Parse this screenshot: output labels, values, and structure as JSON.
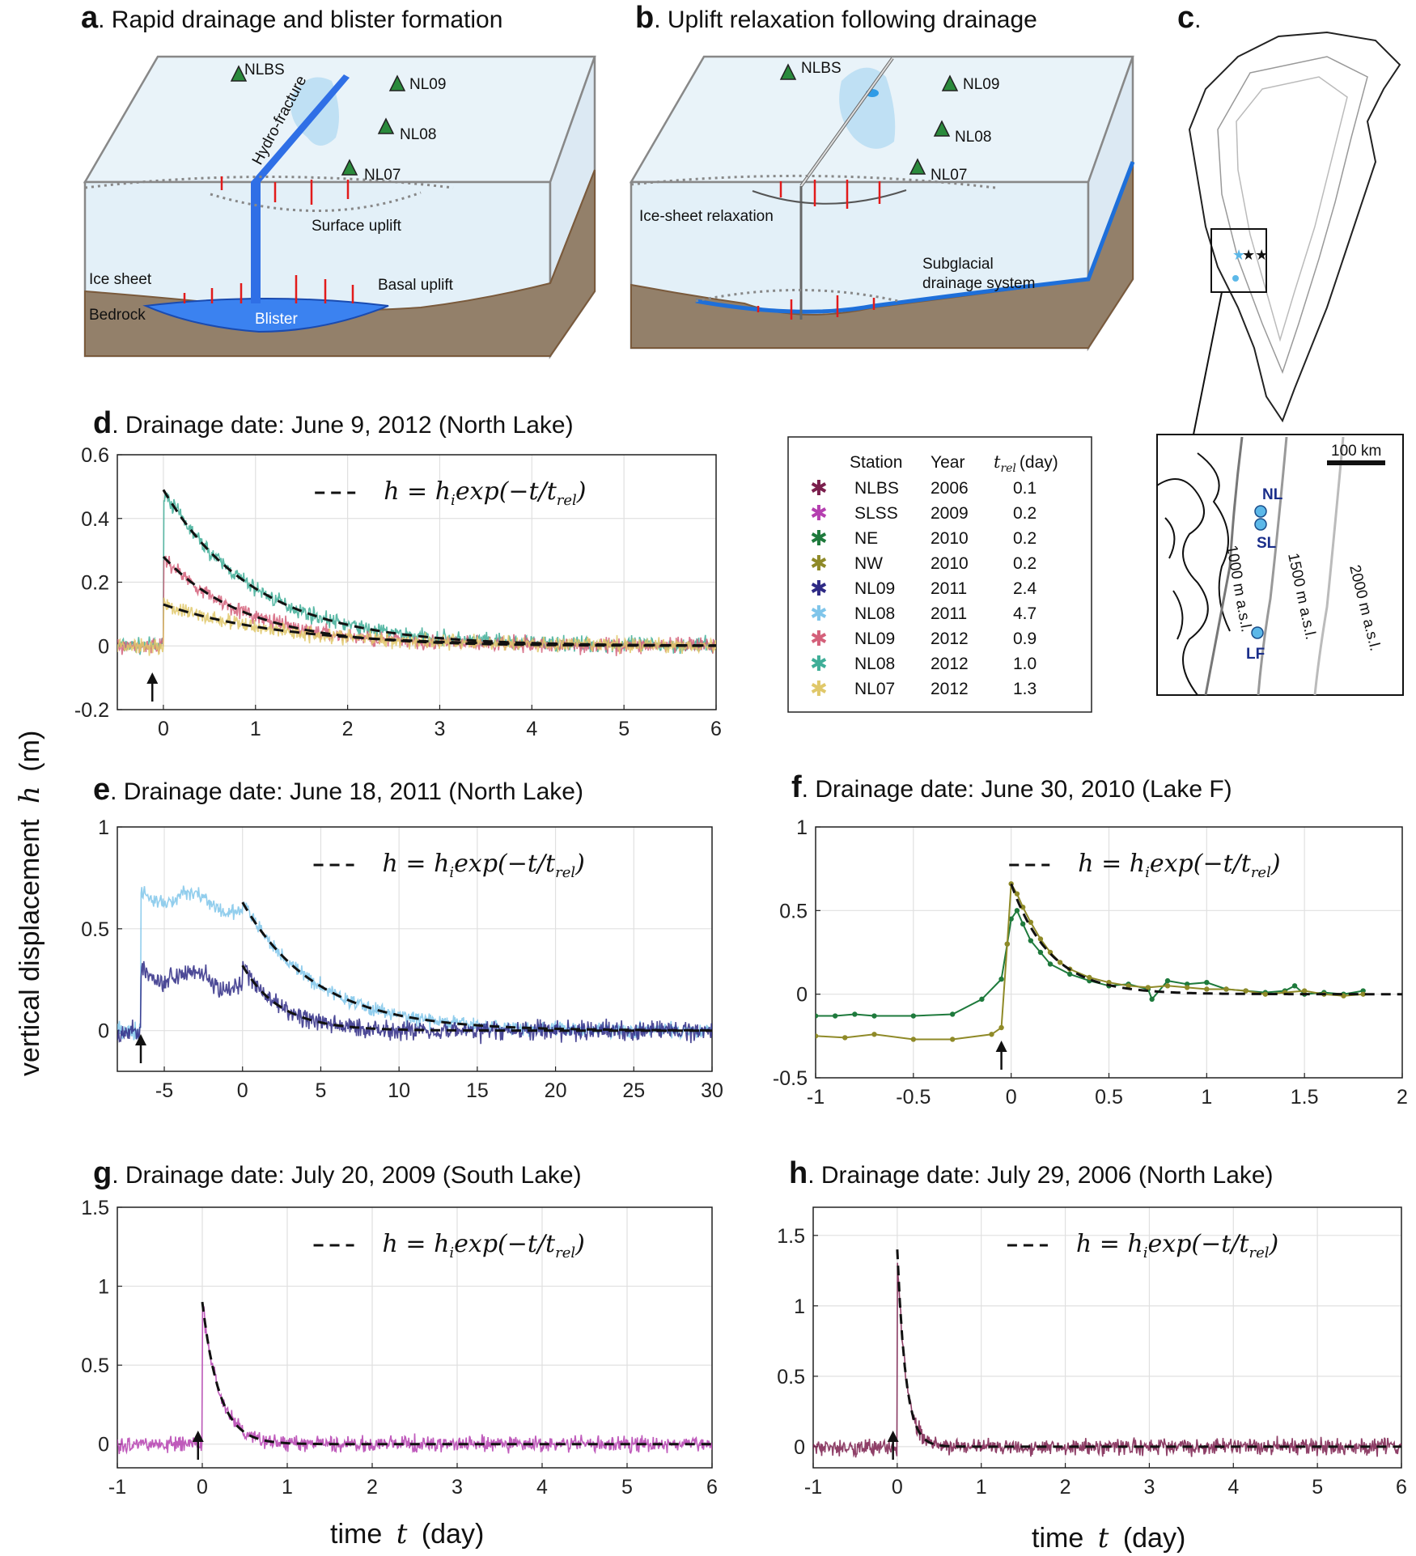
{
  "panels": {
    "a": {
      "label": "a",
      "title": ". Rapid drainage and blister formation",
      "annotations": {
        "nlbs": "NLBS",
        "nl09": "NL09",
        "nl08": "NL08",
        "nl07": "NL07",
        "hydro": "Hydro-fracture",
        "surface": "Surface uplift",
        "ice": "Ice sheet",
        "basal": "Basal uplift",
        "bedrock": "Bedrock",
        "blister": "Blister"
      }
    },
    "b": {
      "label": "b",
      "title": ". Uplift relaxation following drainage",
      "annotations": {
        "nlbs": "NLBS",
        "nl09": "NL09",
        "nl08": "NL08",
        "nl07": "NL07",
        "relax": "Ice-sheet relaxation",
        "subglacial1": "Subglacial",
        "subglacial2": "drainage system"
      }
    },
    "c": {
      "label": "c",
      "title": ".",
      "scale": "100 km",
      "nl": "NL",
      "sl": "SL",
      "lf": "LF",
      "contours": [
        "1000 m a.s.l.",
        "1500 m a.s.l.",
        "2000 m a.s.l."
      ]
    }
  },
  "shared": {
    "ylabel_text": "vertical displacement",
    "ylabel_symbol": "h",
    "ylabel_unit": "(m)",
    "xlabel_text": "time",
    "xlabel_symbol": "t",
    "xlabel_unit": "(day)",
    "fit_label": "h = h",
    "fit_sub": "i",
    "fit_rest": "exp(−t/t",
    "fit_sub2": "rel",
    "fit_close": ")"
  },
  "legend": {
    "headers": [
      "Station",
      "Year",
      "t",
      "rel",
      "(day)"
    ],
    "rows": [
      {
        "station": "NLBS",
        "year": "2006",
        "trel": "0.1",
        "color": "#7b1f4d"
      },
      {
        "station": "SLSS",
        "year": "2009",
        "trel": "0.2",
        "color": "#b53fb0"
      },
      {
        "station": "NE",
        "year": "2010",
        "trel": "0.2",
        "color": "#1e7a3c"
      },
      {
        "station": "NW",
        "year": "2010",
        "trel": "0.2",
        "color": "#8f8a28"
      },
      {
        "station": "NL09",
        "year": "2011",
        "trel": "2.4",
        "color": "#2e2a85"
      },
      {
        "station": "NL08",
        "year": "2011",
        "trel": "4.7",
        "color": "#7fc5ea"
      },
      {
        "station": "NL09",
        "year": "2012",
        "trel": "0.9",
        "color": "#d4607a"
      },
      {
        "station": "NL08",
        "year": "2012",
        "trel": "1.0",
        "color": "#3fae98"
      },
      {
        "station": "NL07",
        "year": "2012",
        "trel": "1.3",
        "color": "#e0c86a"
      }
    ]
  },
  "chart_data": [
    {
      "id": "d",
      "label": "d",
      "type": "line",
      "title": ". Drainage date: June 9, 2012 (North Lake)",
      "xlim": [
        -0.5,
        6
      ],
      "ylim": [
        -0.2,
        0.6
      ],
      "xticks": [
        0,
        1,
        2,
        3,
        4,
        5,
        6
      ],
      "yticks": [
        -0.2,
        0,
        0.2,
        0.4,
        0.6
      ],
      "xticklabels": [
        "0",
        "1",
        "2",
        "3",
        "4",
        "5",
        "6"
      ],
      "yticklabels": [
        "-0.2",
        "0",
        "0.2",
        "0.4",
        "0.6"
      ],
      "arrow_x": -0.12,
      "series": [
        {
          "name": "NL08 2012",
          "color": "#3fae98",
          "hi": 0.49,
          "trel": 1.0,
          "pre": [
            -0.5,
            0
          ],
          "noise": 0.02
        },
        {
          "name": "NL09 2012",
          "color": "#d4607a",
          "hi": 0.28,
          "trel": 0.9,
          "pre": [
            -0.5,
            0
          ],
          "noise": 0.02
        },
        {
          "name": "NL07 2012",
          "color": "#e0c86a",
          "hi": 0.13,
          "trel": 1.3,
          "pre": [
            -0.5,
            0
          ],
          "noise": 0.02
        }
      ]
    },
    {
      "id": "e",
      "label": "e",
      "type": "line",
      "title": ". Drainage date: June 18, 2011 (North Lake)",
      "xlim": [
        -8,
        30
      ],
      "ylim": [
        -0.2,
        1
      ],
      "xticks": [
        -5,
        0,
        5,
        10,
        15,
        20,
        25,
        30
      ],
      "yticks": [
        0,
        0.5,
        1
      ],
      "xticklabels": [
        "-5",
        "0",
        "5",
        "10",
        "15",
        "20",
        "25",
        "30"
      ],
      "yticklabels": [
        "0",
        "0.5",
        "1"
      ],
      "arrow_x": -6.5,
      "series": [
        {
          "name": "NL08 2011",
          "color": "#7fc5ea",
          "hi": 0.63,
          "trel": 4.7,
          "plateau": 0.68,
          "noise": 0.03
        },
        {
          "name": "NL09 2011",
          "color": "#2e2a85",
          "hi": 0.32,
          "trel": 2.4,
          "plateau": 0.3,
          "noise": 0.04
        }
      ]
    },
    {
      "id": "f",
      "label": "f",
      "type": "line",
      "title": ". Drainage date: June 30, 2010 (Lake F)",
      "xlim": [
        -1,
        2
      ],
      "ylim": [
        -0.5,
        1
      ],
      "xticks": [
        -1,
        -0.5,
        0,
        0.5,
        1,
        1.5,
        2
      ],
      "yticks": [
        -0.5,
        0,
        0.5,
        1
      ],
      "xticklabels": [
        "-1",
        "-0.5",
        "0",
        "0.5",
        "1",
        "1.5",
        "2"
      ],
      "yticklabels": [
        "-0.5",
        "0",
        "0.5",
        "1"
      ],
      "arrow_x": -0.05,
      "series": [
        {
          "name": "NE 2010",
          "color": "#1e7a3c",
          "x": [
            -1,
            -0.9,
            -0.8,
            -0.7,
            -0.5,
            -0.3,
            -0.15,
            -0.05,
            -0.02,
            0,
            0.03,
            0.06,
            0.1,
            0.15,
            0.2,
            0.3,
            0.4,
            0.5,
            0.6,
            0.7,
            0.72,
            0.8,
            0.9,
            1.0,
            1.1,
            1.2,
            1.3,
            1.4,
            1.45,
            1.5,
            1.6,
            1.7,
            1.8
          ],
          "y": [
            -0.13,
            -0.13,
            -0.12,
            -0.13,
            -0.13,
            -0.12,
            -0.03,
            0.09,
            0.3,
            0.45,
            0.5,
            0.42,
            0.32,
            0.25,
            0.18,
            0.12,
            0.08,
            0.05,
            0.06,
            0.03,
            -0.03,
            0.08,
            0.06,
            0.07,
            0.03,
            0.02,
            0.01,
            0.02,
            0.05,
            0.0,
            0.01,
            0.0,
            0.02
          ]
        },
        {
          "name": "NW 2010",
          "color": "#8f8a28",
          "x": [
            -1,
            -0.85,
            -0.7,
            -0.5,
            -0.3,
            -0.1,
            -0.05,
            -0.02,
            0,
            0.03,
            0.06,
            0.1,
            0.15,
            0.2,
            0.25,
            0.3,
            0.4,
            0.5,
            0.6,
            0.7,
            0.8,
            0.9,
            1.0,
            1.1,
            1.2,
            1.3,
            1.4,
            1.5,
            1.6,
            1.7,
            1.8
          ],
          "y": [
            -0.25,
            -0.26,
            -0.24,
            -0.27,
            -0.27,
            -0.24,
            -0.2,
            0.3,
            0.66,
            0.6,
            0.52,
            0.43,
            0.33,
            0.25,
            0.19,
            0.15,
            0.1,
            0.07,
            0.05,
            0.04,
            0.05,
            0.04,
            0.03,
            0.03,
            0.02,
            0.0,
            0.01,
            0.02,
            0.0,
            -0.01,
            0.0
          ]
        }
      ],
      "fits": [
        {
          "hi": 0.66,
          "trel": 0.2
        }
      ]
    },
    {
      "id": "g",
      "label": "g",
      "type": "line",
      "title": ". Drainage date: July 20, 2009 (South Lake)",
      "xlim": [
        -1,
        6
      ],
      "ylim": [
        -0.15,
        1.5
      ],
      "xticks": [
        -1,
        0,
        1,
        2,
        3,
        4,
        5,
        6
      ],
      "yticks": [
        0,
        0.5,
        1,
        1.5
      ],
      "xticklabels": [
        "-1",
        "0",
        "1",
        "2",
        "3",
        "4",
        "5",
        "6"
      ],
      "yticklabels": [
        "0",
        "0.5",
        "1",
        "1.5"
      ],
      "arrow_x": -0.05,
      "series": [
        {
          "name": "SLSS 2009",
          "color": "#b53fb0",
          "hi": 0.9,
          "trel": 0.2,
          "noise": 0.04
        }
      ]
    },
    {
      "id": "h",
      "label": "h",
      "type": "line",
      "title": ". Drainage date: July 29, 2006 (North Lake)",
      "xlim": [
        -1,
        6
      ],
      "ylim": [
        -0.15,
        1.7
      ],
      "xticks": [
        -1,
        0,
        1,
        2,
        3,
        4,
        5,
        6
      ],
      "yticks": [
        0,
        0.5,
        1,
        1.5
      ],
      "xticklabels": [
        "-1",
        "0",
        "1",
        "2",
        "3",
        "4",
        "5",
        "6"
      ],
      "yticklabels": [
        "0",
        "0.5",
        "1",
        "1.5"
      ],
      "arrow_x": -0.05,
      "series": [
        {
          "name": "NLBS 2006",
          "color": "#7b1f4d",
          "hi": 1.4,
          "trel": 0.1,
          "noise": 0.05
        }
      ]
    }
  ]
}
